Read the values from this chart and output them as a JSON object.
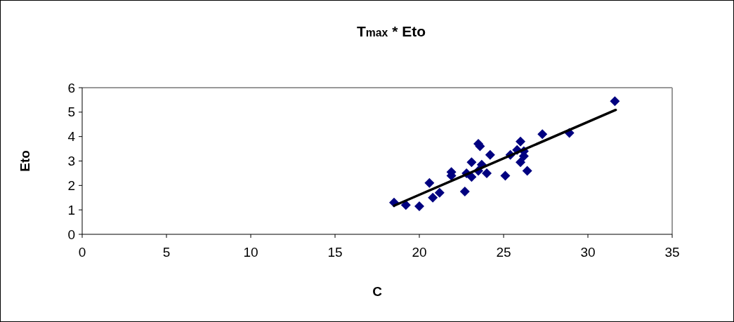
{
  "chart_data": {
    "type": "scatter",
    "title": "T$_{max}$  * Eto",
    "xlabel": "C",
    "ylabel": "Eto",
    "xlim": [
      0,
      35
    ],
    "xticks": [
      0,
      5,
      10,
      15,
      20,
      25,
      30,
      35
    ],
    "ylim": [
      0,
      6
    ],
    "yticks": [
      0,
      1,
      2,
      3,
      4,
      5,
      6
    ],
    "grid": false,
    "marker": "diamond",
    "series": [
      {
        "color": "#000080",
        "x": [
          18.5,
          19.2,
          20.0,
          20.6,
          20.8,
          21.2,
          21.9,
          21.9,
          22.7,
          22.8,
          23.1,
          23.1,
          23.5,
          23.6,
          23.7,
          23.5,
          24.0,
          24.2,
          25.1,
          25.4,
          26.0,
          25.8,
          26.2,
          26.2,
          26.0,
          26.4,
          27.3,
          28.9,
          31.6
        ],
        "values": [
          1.3,
          1.2,
          1.15,
          2.1,
          1.5,
          1.7,
          2.55,
          2.4,
          1.75,
          2.5,
          2.95,
          2.35,
          3.7,
          3.6,
          2.85,
          2.6,
          2.5,
          3.25,
          2.4,
          3.25,
          3.8,
          3.45,
          3.4,
          3.2,
          2.95,
          2.6,
          4.1,
          4.15,
          5.45
        ]
      },
      {
        "type": "line",
        "color": "#000000",
        "line_style": "solid",
        "marker": "none",
        "x": [
          18.5,
          31.65
        ],
        "values": [
          1.17,
          5.09
        ]
      }
    ]
  }
}
